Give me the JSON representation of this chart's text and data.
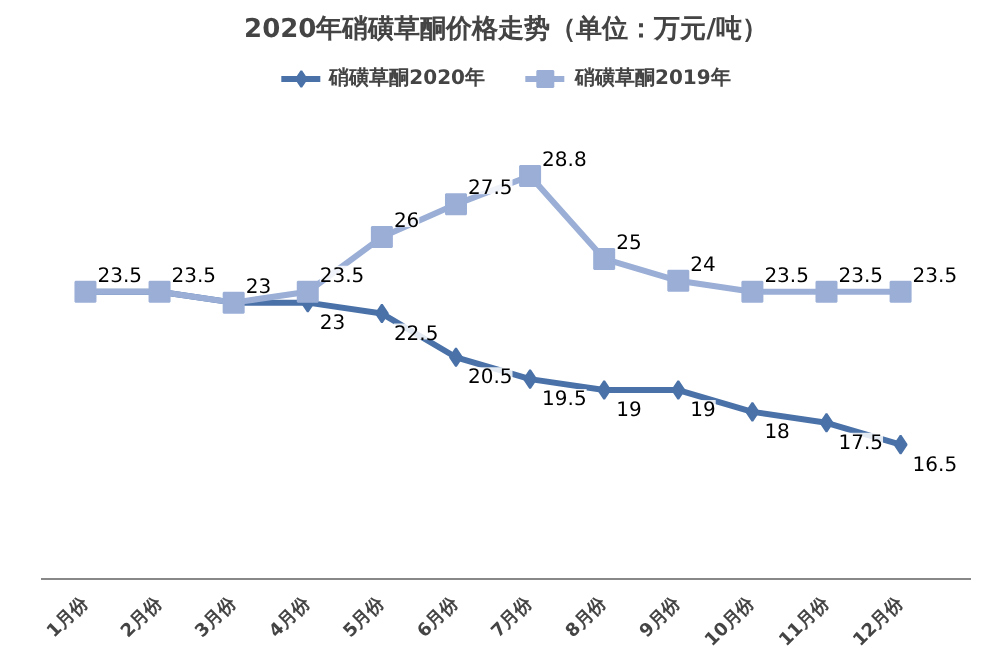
{
  "chart_data": {
    "type": "line",
    "title": "2020年硝磺草酮价格走势（单位：万元/吨）",
    "categories": [
      "1月份",
      "2月份",
      "3月份",
      "4月份",
      "5月份",
      "6月份",
      "7月份",
      "8月份",
      "9月份",
      "10月份",
      "11月份",
      "12月份"
    ],
    "series": [
      {
        "name": "硝磺草酮2020年",
        "color": "#4a72a8",
        "marker": "diamond",
        "values": [
          23.5,
          23.5,
          23,
          23,
          22.5,
          20.5,
          19.5,
          19,
          19,
          18,
          17.5,
          16.5
        ],
        "value_labels": [
          null,
          null,
          null,
          "23",
          "22.5",
          "20.5",
          "19.5",
          "19",
          "19",
          "18",
          "17.5",
          "16.5"
        ]
      },
      {
        "name": "硝磺草酮2019年",
        "color": "#9aaed6",
        "marker": "square",
        "values": [
          23.5,
          23.5,
          23,
          23.5,
          26,
          27.5,
          28.8,
          25,
          24,
          23.5,
          23.5,
          23.5
        ]
      }
    ],
    "data_labels": true,
    "grid": false,
    "legend": "top",
    "tick_labels": "x",
    "line_style": "solid"
  }
}
